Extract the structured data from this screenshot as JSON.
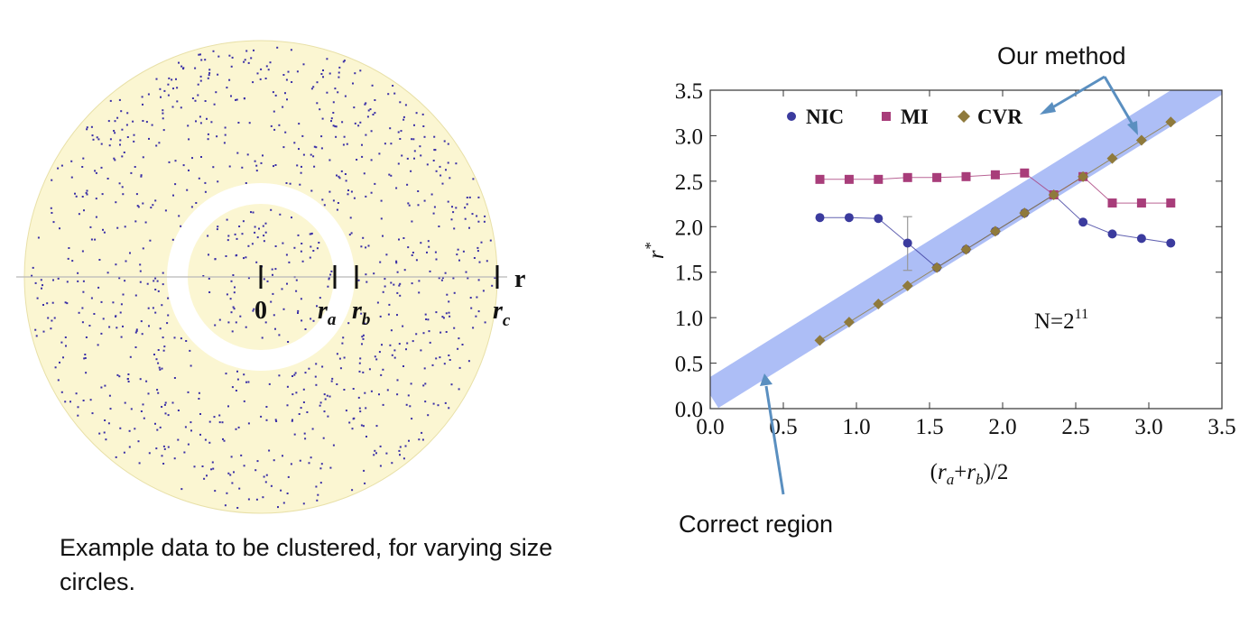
{
  "panel_left": {
    "axis_label": "r",
    "marks": [
      {
        "base": "0",
        "sub": ""
      },
      {
        "base": "r",
        "sub": "a"
      },
      {
        "base": "r",
        "sub": "b"
      },
      {
        "base": "r",
        "sub": "c"
      }
    ],
    "caption": "Example data to be clustered, for varying size circles.",
    "colors": {
      "fill": "#fbf6d2",
      "ring_edge": "#e8e0a8",
      "dots": "#3a2fa6",
      "gap": "#ffffff"
    }
  },
  "chart_data": {
    "type": "line",
    "x": [
      0.75,
      0.95,
      1.15,
      1.35,
      1.55,
      1.75,
      1.95,
      2.15,
      2.35,
      2.55,
      2.75,
      2.95,
      3.15
    ],
    "series": [
      {
        "name": "NIC",
        "marker": "circle",
        "color": "#3b3b9e",
        "values": [
          2.1,
          2.1,
          2.09,
          1.82,
          1.55,
          1.75,
          1.95,
          2.15,
          2.35,
          2.05,
          1.92,
          1.87,
          1.82
        ],
        "error_bar": {
          "x": 1.35,
          "low": 1.52,
          "high": 2.11
        }
      },
      {
        "name": "MI",
        "marker": "square",
        "color": "#a83d7a",
        "values": [
          2.52,
          2.52,
          2.52,
          2.54,
          2.54,
          2.55,
          2.57,
          2.59,
          2.35,
          2.55,
          2.26,
          2.26,
          2.26
        ]
      },
      {
        "name": "CVR",
        "marker": "diamond",
        "color": "#8f7a3c",
        "values": [
          0.75,
          0.95,
          1.15,
          1.35,
          1.55,
          1.75,
          1.95,
          2.15,
          2.35,
          2.55,
          2.75,
          2.95,
          3.15
        ]
      }
    ],
    "band": {
      "from": [
        0.0,
        0.15
      ],
      "to": [
        3.5,
        3.65
      ],
      "color": "#9fb3f5"
    },
    "xlabel_parts": {
      "open": "(",
      "r1": "r",
      "s1": "a",
      "plus": "+",
      "r2": "r",
      "s2": "b",
      "close": ")/2"
    },
    "ylabel": {
      "base": "r",
      "sup": "*"
    },
    "xlim": [
      0.0,
      3.5
    ],
    "ylim": [
      0.0,
      3.5
    ],
    "xticks": [
      "0.0",
      "0.5",
      "1.0",
      "1.5",
      "2.0",
      "2.5",
      "3.0",
      "3.5"
    ],
    "yticks": [
      "0.0",
      "0.5",
      "1.0",
      "1.5",
      "2.0",
      "2.5",
      "3.0",
      "3.5"
    ],
    "grid": false,
    "legend_position": "top-left",
    "annotation": {
      "base": "N=2",
      "sup": "11"
    },
    "callouts": {
      "our_method": "Our method",
      "correct_region": "Correct region"
    },
    "callout_color": "#5a8fc0"
  }
}
